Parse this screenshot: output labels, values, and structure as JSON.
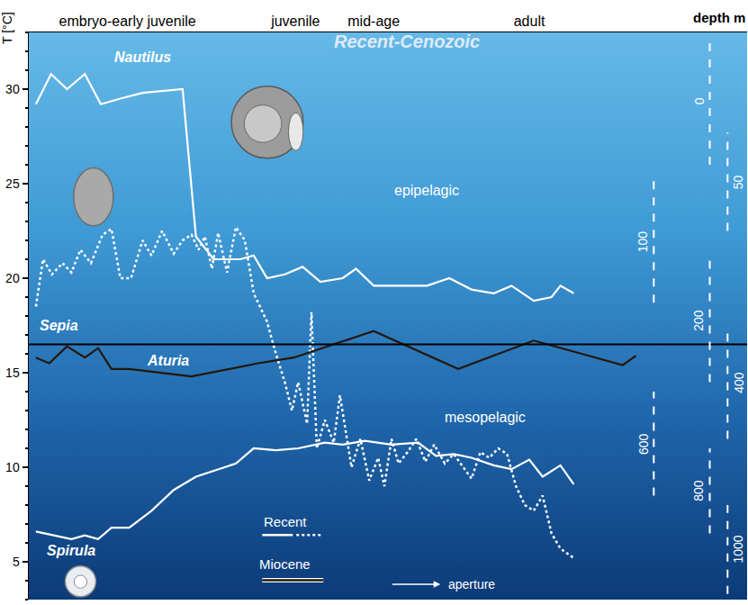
{
  "chart_data": {
    "type": "line",
    "title": "Recent-Cenozoic",
    "y_label": "T [°C]",
    "xlim": [
      22,
      830
    ],
    "xticks": [
      {
        "value": 133,
        "label": "embryo-early juvenile"
      },
      {
        "value": 322,
        "label": "juvenile"
      },
      {
        "value": 410,
        "label": "mid-age"
      },
      {
        "value": 585,
        "label": "adult"
      }
    ],
    "ylim": [
      3,
      33
    ],
    "yticks": [
      5,
      10,
      15,
      20,
      25,
      30
    ],
    "grid": false,
    "series": [
      {
        "name": "Nautilus",
        "color": "#ffffff",
        "line_style": "solid",
        "x": [
          30,
          47,
          65,
          85,
          103,
          125,
          150,
          195,
          210,
          230,
          260,
          275,
          290,
          310,
          330,
          350,
          375,
          390,
          410,
          440,
          470,
          495,
          520,
          545,
          565,
          590,
          610,
          620,
          635
        ],
        "values": [
          29.2,
          30.8,
          30.0,
          30.8,
          29.2,
          29.5,
          29.8,
          30.0,
          22.2,
          21.0,
          21.0,
          21.2,
          20.0,
          20.2,
          20.6,
          19.8,
          20.0,
          20.5,
          19.6,
          19.6,
          19.6,
          20.0,
          19.4,
          19.2,
          19.6,
          18.8,
          19.0,
          19.6,
          19.2
        ]
      },
      {
        "name": "Sepia",
        "color": "#ffffff",
        "line_style": "dotted",
        "x": [
          30,
          38,
          48,
          60,
          70,
          80,
          92,
          105,
          115,
          125,
          137,
          150,
          160,
          172,
          185,
          195,
          205,
          213,
          220,
          228,
          235,
          245,
          255,
          265,
          275,
          290,
          300,
          310,
          318,
          325,
          335,
          340,
          346,
          355,
          365,
          372,
          385,
          395,
          405,
          415,
          422,
          430,
          438,
          448,
          458,
          468,
          478,
          490,
          500,
          512,
          520,
          530,
          540,
          550,
          560,
          570,
          580,
          590,
          600,
          610,
          620,
          635
        ],
        "values": [
          18.5,
          21.0,
          20.2,
          20.8,
          20.3,
          21.5,
          20.8,
          22.3,
          22.6,
          20.0,
          20.0,
          22.0,
          21.2,
          22.5,
          21.3,
          22.0,
          22.3,
          21.5,
          22.2,
          20.5,
          22.4,
          20.3,
          22.7,
          22.0,
          19.2,
          17.7,
          16.0,
          14.5,
          13.0,
          14.5,
          12.3,
          18.2,
          11.0,
          12.5,
          11.3,
          13.8,
          10.0,
          11.5,
          9.3,
          10.5,
          9.0,
          11.5,
          10.2,
          10.8,
          11.5,
          10.3,
          11.2,
          10.2,
          10.7,
          9.9,
          9.4,
          10.8,
          10.5,
          11.0,
          10.7,
          9.0,
          8.0,
          7.7,
          8.5,
          6.5,
          5.7,
          5.2
        ]
      },
      {
        "name": "Aturia",
        "color": "#24160c",
        "line_style": "solid",
        "x": [
          30,
          45,
          65,
          85,
          100,
          115,
          135,
          205,
          280,
          320,
          410,
          505,
          590,
          690,
          705
        ],
        "values": [
          15.8,
          15.5,
          16.4,
          15.8,
          16.3,
          15.2,
          15.2,
          14.8,
          15.5,
          15.8,
          17.2,
          15.2,
          16.7,
          15.4,
          15.9
        ]
      },
      {
        "name": "Spirula",
        "color": "#ffffff",
        "line_style": "solid",
        "x": [
          30,
          50,
          70,
          85,
          100,
          115,
          135,
          160,
          185,
          210,
          230,
          255,
          275,
          300,
          325,
          355,
          375,
          400,
          430,
          460,
          480,
          500,
          520,
          545,
          565,
          585,
          600,
          620,
          635
        ],
        "values": [
          6.6,
          6.4,
          6.2,
          6.4,
          6.2,
          6.8,
          6.8,
          7.7,
          8.8,
          9.5,
          9.8,
          10.2,
          11.0,
          10.9,
          11.0,
          11.3,
          11.2,
          11.4,
          11.2,
          11.3,
          10.6,
          10.7,
          10.5,
          10.1,
          9.9,
          10.4,
          9.5,
          10.1,
          9.1
        ]
      }
    ],
    "hline": 16.5,
    "zones": [
      "epipelagic",
      "mesopelagic"
    ],
    "legend": "bottom",
    "legend_items": [
      {
        "label": "Recent",
        "line_style": [
          "solid",
          "dotted"
        ],
        "color": "#ffffff"
      },
      {
        "label": "Miocene",
        "line_style": [
          "solid"
        ],
        "color": "#24160c"
      }
    ],
    "arrow_label": "aperture",
    "depth_title": "depth m",
    "depth_scale": [
      {
        "depth": 0,
        "T_range": [
          26.0,
          32.7
        ]
      },
      {
        "depth": 50,
        "T_range": [
          22.5,
          27.7
        ]
      },
      {
        "depth": 100,
        "T_range": [
          18.7,
          25.2
        ]
      },
      {
        "depth": 200,
        "T_range": [
          14.5,
          21.0
        ]
      },
      {
        "depth": 400,
        "T_range": [
          11.5,
          17.5
        ]
      },
      {
        "depth": 600,
        "T_range": [
          8.5,
          14.0
        ]
      },
      {
        "depth": 800,
        "T_range": [
          6.5,
          11.0
        ]
      },
      {
        "depth": 1000,
        "T_range": [
          3.3,
          8.0
        ]
      }
    ]
  }
}
